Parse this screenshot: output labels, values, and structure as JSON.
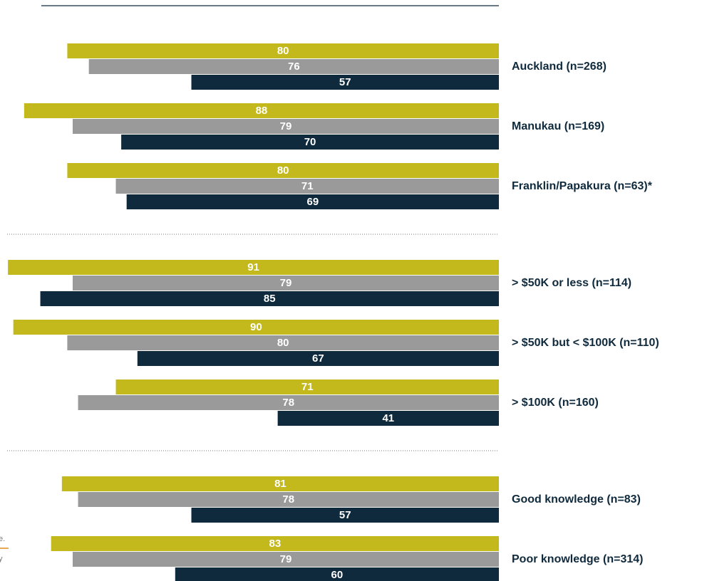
{
  "chart_data": {
    "type": "bar",
    "orientation": "horizontal",
    "categories": [
      "Auckland (n=268)",
      "Manukau (n=169)",
      "Franklin/Papakura (n=63)*",
      "> $50K or less (n=114)",
      "> $50K but < $100K (n=110)",
      "> $100K (n=160)",
      "Good knowledge (n=83)",
      "Poor knowledge (n=314)"
    ],
    "series": [
      {
        "color": "#c4b91c",
        "values": [
          80,
          88,
          80,
          91,
          90,
          71,
          81,
          83
        ]
      },
      {
        "color": "#9a9a9a",
        "values": [
          76,
          79,
          71,
          79,
          80,
          78,
          78,
          79
        ]
      },
      {
        "color": "#0f2a3d",
        "values": [
          57,
          70,
          69,
          85,
          67,
          41,
          57,
          60
        ]
      }
    ]
  },
  "footnote": [
    "e.",
    "y"
  ]
}
